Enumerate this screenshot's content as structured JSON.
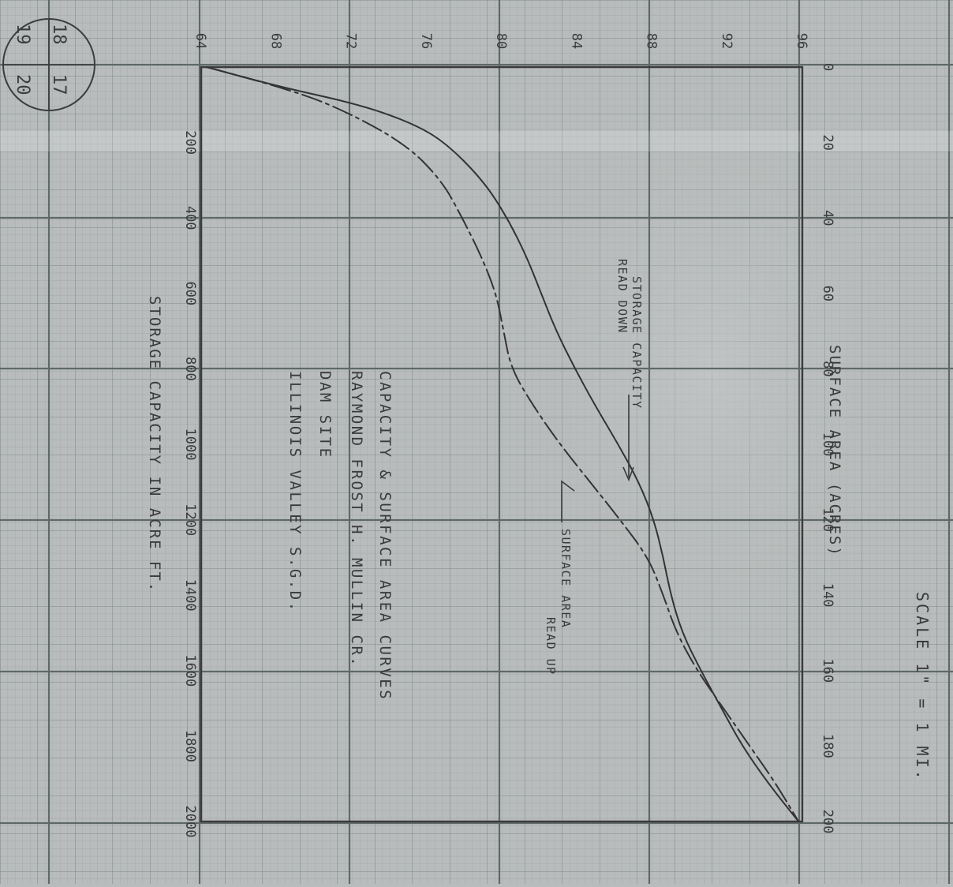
{
  "corner_box": {
    "top_left": "18",
    "top_right": "17",
    "bottom_left": "19",
    "bottom_right": "20"
  },
  "scale_note": "SCALE 1\" = 1 MI.",
  "axis_labels": {
    "storage": "STORAGE CAPACITY IN ACRE FT.",
    "surface": "SURFACE AREA (ACRES)"
  },
  "curve_labels": {
    "storage": [
      "STORAGE CAPACITY",
      "READ DOWN"
    ],
    "surface": [
      "SURFACE AREA",
      "READ UP"
    ]
  },
  "title_block": [
    "CAPACITY & SURFACE AREA CURVES",
    "RAYMOND FROST H. MULLIN CR.",
    "DAM SITE",
    "ILLINOIS VALLEY     S.G.D."
  ],
  "colors": {
    "paper": "#b9bcbc",
    "grid": "#8c9595",
    "grid_major": "#626b6b",
    "ink": "#3a3a3a"
  },
  "chart_data": {
    "type": "line",
    "elevation_ticks": [
      "64",
      "68",
      "72",
      "76",
      "80",
      "84",
      "88",
      "92",
      "96"
    ],
    "storage_ticks": [
      "200",
      "400",
      "600",
      "800",
      "1000",
      "1200",
      "1400",
      "1600",
      "1800",
      "2000"
    ],
    "surface_ticks": [
      "0",
      "20",
      "40",
      "60",
      "80",
      "100",
      "120",
      "140",
      "160",
      "180",
      "200"
    ],
    "elevation_range": [
      64,
      96
    ],
    "storage_range": [
      0,
      2000
    ],
    "surface_range": [
      0,
      200
    ],
    "series": [
      {
        "name": "STORAGE CAPACITY",
        "x_axis": "storage",
        "points": [
          [
            0,
            64.3
          ],
          [
            50,
            68
          ],
          [
            100,
            72.5
          ],
          [
            150,
            75.3
          ],
          [
            200,
            77
          ],
          [
            300,
            79
          ],
          [
            400,
            80.3
          ],
          [
            500,
            81.3
          ],
          [
            600,
            82.1
          ],
          [
            700,
            82.9
          ],
          [
            800,
            83.9
          ],
          [
            900,
            85.0
          ],
          [
            1000,
            86.2
          ],
          [
            1100,
            87.3
          ],
          [
            1200,
            88.1
          ],
          [
            1300,
            88.6
          ],
          [
            1400,
            89.0
          ],
          [
            1500,
            89.6
          ],
          [
            1600,
            90.6
          ],
          [
            1700,
            91.7
          ],
          [
            1800,
            92.8
          ],
          [
            1900,
            94.2
          ],
          [
            2000,
            95.8
          ]
        ]
      },
      {
        "name": "SURFACE AREA",
        "x_axis": "surface",
        "points": [
          [
            0,
            64.3
          ],
          [
            5,
            68
          ],
          [
            10,
            71
          ],
          [
            20,
            74.8
          ],
          [
            30,
            76.8
          ],
          [
            40,
            77.9
          ],
          [
            50,
            78.9
          ],
          [
            60,
            79.7
          ],
          [
            70,
            80.1
          ],
          [
            80,
            80.5
          ],
          [
            90,
            81.7
          ],
          [
            100,
            83.1
          ],
          [
            110,
            84.7
          ],
          [
            120,
            86.3
          ],
          [
            130,
            87.8
          ],
          [
            140,
            88.6
          ],
          [
            150,
            89.3
          ],
          [
            160,
            90.4
          ],
          [
            170,
            91.8
          ],
          [
            180,
            93.2
          ],
          [
            190,
            94.6
          ],
          [
            200,
            95.8
          ]
        ]
      }
    ]
  }
}
